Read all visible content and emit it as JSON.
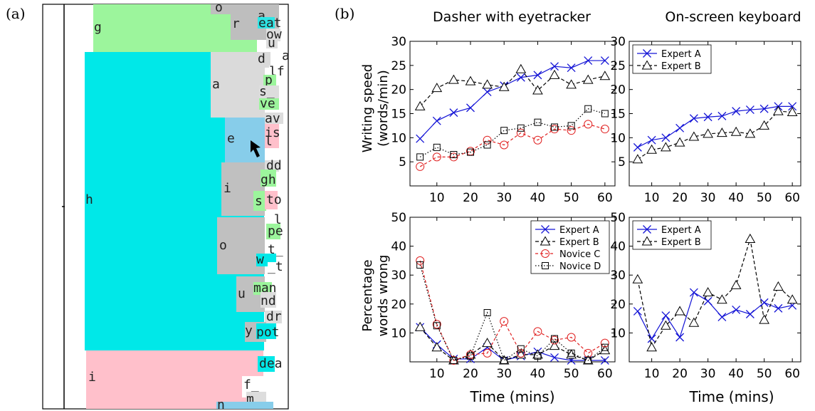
{
  "panel_a": {
    "label": "(a)",
    "blocks": [
      {
        "name": "block-g",
        "color": "#9cf59c",
        "char": "g"
      },
      {
        "name": "block-o-top",
        "color": "#bebebe",
        "char": "o"
      },
      {
        "name": "block-r",
        "color": "#bebebe",
        "char": "r"
      },
      {
        "name": "block-a-top",
        "color": "#bebebe",
        "char": "a"
      },
      {
        "name": "block-eat",
        "color": "#2ee6e6",
        "char": "eat"
      },
      {
        "name": "block-ow",
        "color": "#dddddd",
        "char": "ow"
      },
      {
        "name": "block-u",
        "color": "#dddddd",
        "char": "u"
      },
      {
        "name": "block-h",
        "color": "#00e8e8",
        "char": "h"
      },
      {
        "name": "block-a-mid",
        "color": "#dadada",
        "char": "a"
      },
      {
        "name": "block-d",
        "color": "#dadada",
        "char": "d"
      },
      {
        "name": "block-a-right",
        "color": "#ffffff",
        "char": "a"
      },
      {
        "name": "block-lf",
        "color": "#ffffff",
        "char": "lf"
      },
      {
        "name": "block-p",
        "color": "#9cf59c",
        "char": "p"
      },
      {
        "name": "block-s-under",
        "color": "#dddddd",
        "char": "s_"
      },
      {
        "name": "block-ve",
        "color": "#9cf59c",
        "char": "ve"
      },
      {
        "name": "block-av",
        "color": "#dddddd",
        "char": "av"
      },
      {
        "name": "block-e",
        "color": "#87cdea",
        "char": "e"
      },
      {
        "name": "block-is",
        "color": "#ffc0cb",
        "char": "is"
      },
      {
        "name": "block-l",
        "color": "#ffc0cb",
        "char": "l"
      },
      {
        "name": "block-dd",
        "color": "#dddddd",
        "char": "dd"
      },
      {
        "name": "block-i-mid",
        "color": "#c0c0c0",
        "char": "i"
      },
      {
        "name": "block-gh",
        "color": "#9cf59c",
        "char": "gh"
      },
      {
        "name": "block-s-mid",
        "color": "#9cf59c",
        "char": "s"
      },
      {
        "name": "block-to",
        "color": "#ffc0cb",
        "char": "to"
      },
      {
        "name": "block-o-mid",
        "color": "#c0c0c0",
        "char": "o"
      },
      {
        "name": "block-l-under",
        "color": "#ffffff",
        "char": "_l"
      },
      {
        "name": "block-pe",
        "color": "#9cf59c",
        "char": "pe"
      },
      {
        "name": "block-t-under",
        "color": "#ffffff",
        "char": "t_"
      },
      {
        "name": "block-w",
        "color": "#00e8e8",
        "char": "w"
      },
      {
        "name": "block-under-t",
        "color": "#ffffff",
        "char": "_t"
      },
      {
        "name": "block-u-mid",
        "color": "#c0c0c0",
        "char": "u"
      },
      {
        "name": "block-man",
        "color": "#9cf59c",
        "char": "man"
      },
      {
        "name": "block-nd",
        "color": "#dddddd",
        "char": "nd"
      },
      {
        "name": "block-dr",
        "color": "#dddddd",
        "char": "dr"
      },
      {
        "name": "block-y",
        "color": "#bebebe",
        "char": "y"
      },
      {
        "name": "block-pot",
        "color": "#00e8e8",
        "char": "pot"
      },
      {
        "name": "block-i-bottom",
        "color": "#ffc0cb",
        "char": "i"
      },
      {
        "name": "block-dea",
        "color": "#00e8e8",
        "char": "dea"
      },
      {
        "name": "block-f-under",
        "color": "#ffffff",
        "char": "f_"
      },
      {
        "name": "block-m",
        "color": "#dddddd",
        "char": "m"
      },
      {
        "name": "block-n",
        "color": "#87cdea",
        "char": "n"
      }
    ]
  },
  "panel_b": {
    "label": "(b)",
    "column_titles": [
      "Dasher with eyetracker",
      "On-screen keyboard"
    ],
    "row_titles": [
      [
        "Writing speed",
        "(words/min)"
      ],
      [
        "Percentage",
        "words wrong"
      ]
    ],
    "xlabel": "Time (mins)"
  },
  "colors": {
    "expert_a": "#1414d6",
    "expert_b": "#000000",
    "novice_c": "#e02020",
    "novice_d": "#000000"
  },
  "chart_data": [
    {
      "type": "line",
      "title": "Dasher with eyetracker",
      "xlabel": "",
      "ylabel": "Writing speed (words/min)",
      "xlim": [
        2,
        63
      ],
      "ylim": [
        0,
        30
      ],
      "xticks": [
        10,
        20,
        30,
        40,
        50,
        60
      ],
      "yticks": [
        5,
        10,
        15,
        20,
        25,
        30
      ],
      "legend": "none",
      "x": [
        5,
        10,
        15,
        20,
        25,
        30,
        35,
        40,
        45,
        50,
        55,
        60
      ],
      "series": [
        {
          "name": "Expert A",
          "marker": "x",
          "values": [
            9.8,
            13.5,
            15.2,
            16.2,
            19.5,
            20.8,
            22.5,
            23.0,
            24.8,
            24.5,
            26.0,
            26.0
          ]
        },
        {
          "name": "Expert B",
          "marker": "triangle",
          "values": [
            16.5,
            20.3,
            22.0,
            21.7,
            21.0,
            20.5,
            24.2,
            19.8,
            23.0,
            21.0,
            22.0,
            22.8
          ]
        },
        {
          "name": "Novice C",
          "marker": "circle",
          "values": [
            4.0,
            6.0,
            6.0,
            7.2,
            9.5,
            8.5,
            11.0,
            9.5,
            11.8,
            11.5,
            12.8,
            11.8
          ]
        },
        {
          "name": "Novice D",
          "marker": "square",
          "values": [
            6.0,
            8.0,
            6.5,
            7.0,
            8.5,
            11.5,
            12.0,
            13.2,
            12.2,
            12.5,
            16.0,
            15.0
          ]
        }
      ]
    },
    {
      "type": "line",
      "title": "On-screen keyboard",
      "xlabel": "",
      "ylabel": "",
      "xlim": [
        2,
        63
      ],
      "ylim": [
        0,
        30
      ],
      "xticks": [
        10,
        20,
        30,
        40,
        50,
        60
      ],
      "yticks": [
        5,
        10,
        15,
        20,
        25,
        30
      ],
      "legend": "top-left",
      "x": [
        5,
        10,
        15,
        20,
        25,
        30,
        35,
        40,
        45,
        50,
        55,
        60
      ],
      "series": [
        {
          "name": "Expert A",
          "marker": "x",
          "values": [
            8.0,
            9.5,
            10.0,
            12.0,
            14.0,
            14.3,
            14.5,
            15.5,
            15.8,
            16.0,
            16.5,
            16.5
          ]
        },
        {
          "name": "Expert B",
          "marker": "triangle",
          "values": [
            5.5,
            7.5,
            8.0,
            9.0,
            10.2,
            10.8,
            11.0,
            11.2,
            10.8,
            12.5,
            15.5,
            15.3
          ]
        }
      ]
    },
    {
      "type": "line",
      "title": "",
      "xlabel": "Time (mins)",
      "ylabel": "Percentage words wrong",
      "xlim": [
        2,
        63
      ],
      "ylim": [
        0,
        50
      ],
      "xticks": [
        10,
        20,
        30,
        40,
        50,
        60
      ],
      "yticks": [
        10,
        20,
        30,
        40,
        50
      ],
      "legend": "top-right",
      "x": [
        5,
        10,
        15,
        20,
        25,
        30,
        35,
        40,
        45,
        50,
        55,
        60
      ],
      "series": [
        {
          "name": "Expert A",
          "marker": "x",
          "values": [
            12.0,
            6.0,
            1.0,
            1.0,
            5.0,
            0.5,
            2.0,
            3.5,
            1.5,
            0.5,
            0.5,
            0.5
          ]
        },
        {
          "name": "Expert B",
          "marker": "triangle",
          "values": [
            12.0,
            5.0,
            0.5,
            2.5,
            6.5,
            0.5,
            2.5,
            2.5,
            5.5,
            2.5,
            0.5,
            4.0
          ]
        },
        {
          "name": "Novice C",
          "marker": "circle",
          "values": [
            35.0,
            13.0,
            0.5,
            2.5,
            3.0,
            14.0,
            3.0,
            10.5,
            7.5,
            8.5,
            3.0,
            6.5
          ]
        },
        {
          "name": "Novice D",
          "marker": "square",
          "values": [
            33.5,
            12.5,
            0.5,
            2.0,
            17.0,
            0.5,
            4.5,
            2.0,
            8.0,
            3.0,
            0.5,
            5.0
          ]
        }
      ]
    },
    {
      "type": "line",
      "title": "",
      "xlabel": "Time (mins)",
      "ylabel": "",
      "xlim": [
        2,
        63
      ],
      "ylim": [
        0,
        50
      ],
      "xticks": [
        10,
        20,
        30,
        40,
        50,
        60
      ],
      "yticks": [
        10,
        20,
        30,
        40,
        50
      ],
      "legend": "top-left",
      "x": [
        5,
        10,
        15,
        20,
        25,
        30,
        35,
        40,
        45,
        50,
        55,
        60
      ],
      "series": [
        {
          "name": "Expert A",
          "marker": "x",
          "values": [
            17.5,
            8.0,
            16.0,
            8.5,
            24.0,
            21.0,
            15.5,
            18.0,
            16.5,
            20.5,
            18.5,
            19.5
          ]
        },
        {
          "name": "Expert B",
          "marker": "triangle",
          "values": [
            28.5,
            5.0,
            12.5,
            17.5,
            13.5,
            24.0,
            21.5,
            26.5,
            42.5,
            14.5,
            26.0,
            21.5
          ]
        }
      ]
    }
  ]
}
